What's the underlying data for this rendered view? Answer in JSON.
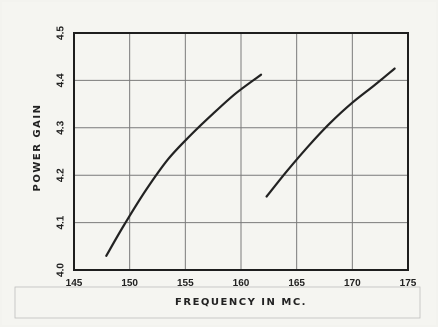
{
  "chart_data": {
    "type": "line",
    "xlabel": "FREQUENCY IN MC.",
    "ylabel": "POWER GAIN",
    "xlim": [
      145,
      175
    ],
    "ylim": [
      4.0,
      4.5
    ],
    "xticks": [
      "145",
      "150",
      "155",
      "160",
      "165",
      "170",
      "175"
    ],
    "yticks": [
      "4.0",
      "4.1",
      "4.2",
      "4.3",
      "4.4",
      "4.5"
    ],
    "grid": true,
    "series": [
      {
        "x": [
          147.9,
          149.5,
          151.5,
          153.5,
          155.5,
          157.5,
          159.5,
          161.8
        ],
        "y": [
          4.03,
          4.095,
          4.17,
          4.235,
          4.285,
          4.33,
          4.372,
          4.412
        ],
        "color": "#222222"
      },
      {
        "x": [
          162.3,
          164.0,
          166.0,
          168.0,
          170.0,
          172.0,
          173.8
        ],
        "y": [
          4.155,
          4.205,
          4.26,
          4.31,
          4.353,
          4.39,
          4.425
        ],
        "color": "#222222"
      }
    ]
  }
}
